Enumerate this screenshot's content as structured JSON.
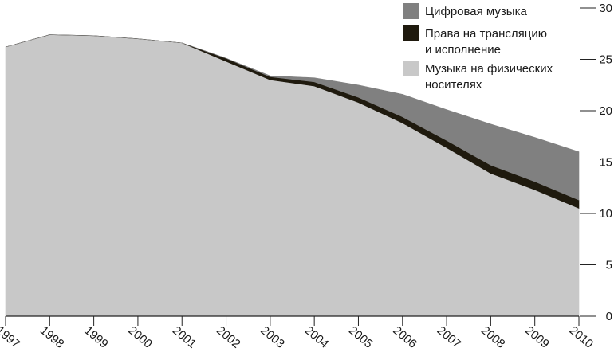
{
  "chart_data": {
    "type": "area",
    "stacked": true,
    "x": [
      1997,
      1998,
      1999,
      2000,
      2001,
      2002,
      2003,
      2004,
      2005,
      2006,
      2007,
      2008,
      2009,
      2010
    ],
    "series": [
      {
        "name": "Музыка на физических носителях",
        "color": "#c8c8c8",
        "values": [
          26.2,
          27.4,
          27.3,
          27.0,
          26.6,
          24.8,
          23.0,
          22.4,
          20.8,
          18.8,
          16.4,
          13.9,
          12.3,
          10.5
        ]
      },
      {
        "name": "Права на трансляцию и исполнение",
        "color": "#1f1a0e",
        "values": [
          0.0,
          0.0,
          0.0,
          0.0,
          0.0,
          0.3,
          0.3,
          0.4,
          0.5,
          0.6,
          0.7,
          0.8,
          0.8,
          0.8
        ]
      },
      {
        "name": "Цифровая музыка",
        "color": "#808080",
        "values": [
          0.0,
          0.0,
          0.0,
          0.0,
          0.0,
          0.0,
          0.1,
          0.4,
          1.2,
          2.2,
          3.0,
          4.0,
          4.3,
          4.7
        ]
      }
    ],
    "ylim": [
      0,
      30
    ],
    "yticks": [
      0,
      5,
      10,
      15,
      20,
      25,
      30
    ],
    "y_axis_position": "right",
    "grid": false,
    "legend_position": "top-right",
    "legend": [
      {
        "lines": [
          "Цифровая музыка"
        ],
        "color": "#808080"
      },
      {
        "lines": [
          "Права на трансляцию",
          "и исполнение"
        ],
        "color": "#1f1a0e"
      },
      {
        "lines": [
          "Музыка на физических",
          "носителях"
        ],
        "color": "#c8c8c8"
      }
    ]
  }
}
